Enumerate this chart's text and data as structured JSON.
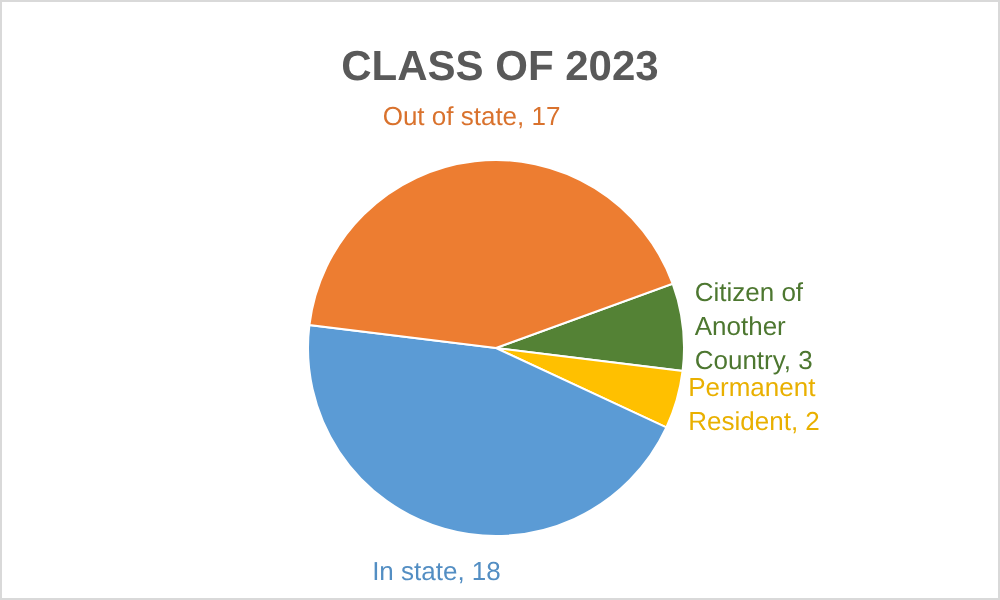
{
  "chart_data": {
    "type": "pie",
    "title": "CLASS OF 2023",
    "categories": [
      "Citizen of Another Country",
      "Permanent Resident",
      "In state",
      "Out of state"
    ],
    "values": [
      3,
      2,
      18,
      17
    ],
    "colors": [
      "#548235",
      "#ffc000",
      "#5b9bd5",
      "#ed7d31"
    ],
    "value_labels": [
      ", 3",
      ", 2",
      ", 18",
      ", 17"
    ]
  }
}
